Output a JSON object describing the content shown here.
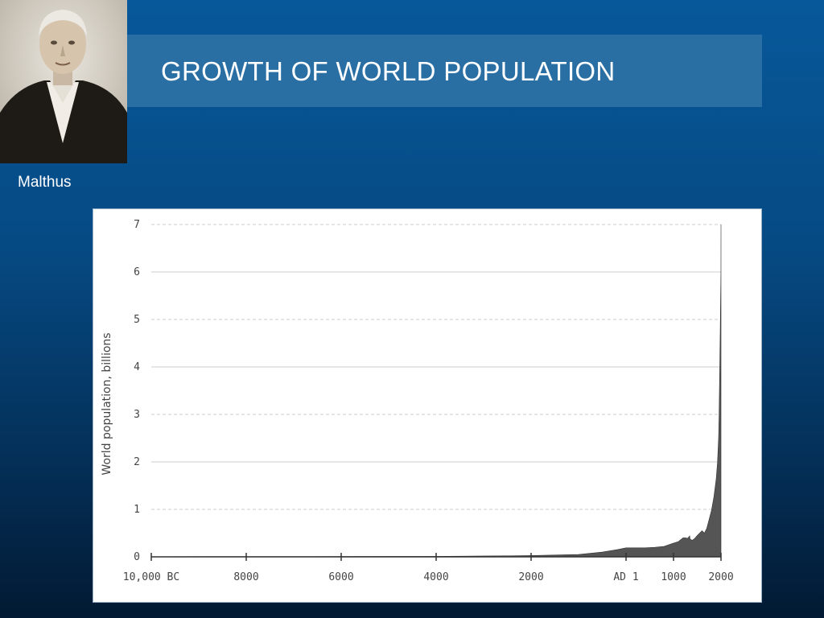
{
  "slide": {
    "title": "GROWTH OF WORLD POPULATION",
    "portrait_caption": "Malthus"
  },
  "colors": {
    "background": "#064a83",
    "title_band": "#2a6fa4",
    "area_fill": "#555555",
    "gridline": "#cccccc"
  },
  "chart_data": {
    "type": "area",
    "title": "",
    "xlabel": "",
    "ylabel": "World population, billions",
    "xlim": [
      -10000,
      2000
    ],
    "ylim": [
      0,
      7
    ],
    "x_ticks": [
      -10000,
      -8000,
      -6000,
      -4000,
      -2000,
      0,
      1000,
      2000
    ],
    "x_tick_labels": [
      "10,000 BC",
      "8000",
      "6000",
      "4000",
      "2000",
      "AD 1",
      "1000",
      "2000"
    ],
    "y_ticks": [
      0,
      1,
      2,
      3,
      4,
      5,
      6,
      7
    ],
    "y_tick_labels": [
      "0",
      "1",
      "2",
      "3",
      "4",
      "5",
      "6",
      "7"
    ],
    "grid": true,
    "series": [
      {
        "x": [
          -10000,
          -8000,
          -6000,
          -4000,
          -2000,
          -1000,
          -500,
          -200,
          0,
          200,
          400,
          600,
          800,
          1000,
          1100,
          1200,
          1250,
          1300,
          1340,
          1350,
          1400,
          1450,
          1500,
          1600,
          1650,
          1700,
          1750,
          1800,
          1850,
          1900,
          1927,
          1950,
          1960,
          1974,
          1987,
          1999,
          2011
        ],
        "y": [
          0.004,
          0.005,
          0.007,
          0.01,
          0.027,
          0.05,
          0.1,
          0.15,
          0.19,
          0.19,
          0.19,
          0.2,
          0.22,
          0.29,
          0.32,
          0.4,
          0.4,
          0.39,
          0.44,
          0.37,
          0.35,
          0.39,
          0.45,
          0.55,
          0.5,
          0.6,
          0.79,
          0.98,
          1.26,
          1.65,
          2.0,
          2.52,
          3.0,
          4.0,
          5.0,
          6.0,
          7.0
        ]
      }
    ]
  }
}
